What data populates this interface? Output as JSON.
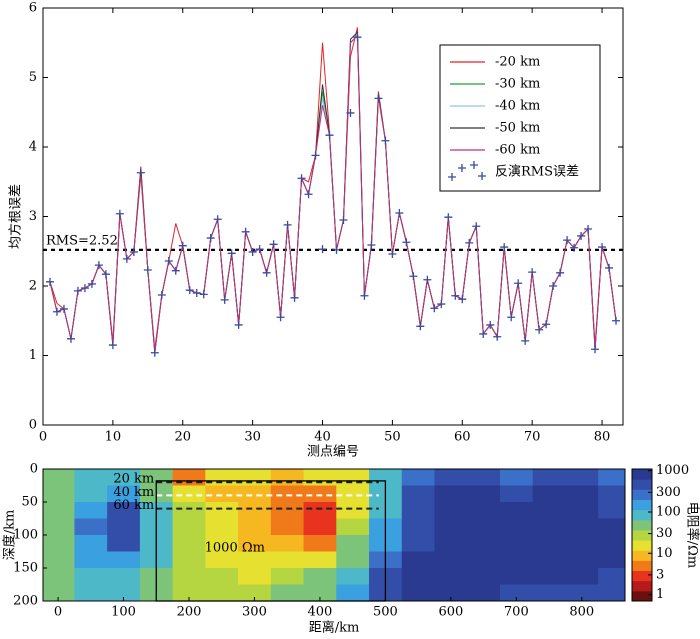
{
  "chart_data": [
    {
      "type": "line",
      "xlabel": "测点编号",
      "ylabel": "均方根误差",
      "xlim": [
        0,
        83
      ],
      "ylim": [
        0,
        6
      ],
      "xticks": [
        0,
        10,
        20,
        30,
        40,
        50,
        60,
        70,
        80
      ],
      "yticks": [
        0,
        1,
        2,
        3,
        4,
        5,
        6
      ],
      "reference_line": {
        "value": 2.52,
        "label": "RMS=2.52"
      },
      "legend": "upper right",
      "x": [
        1,
        2,
        3,
        4,
        5,
        6,
        7,
        8,
        9,
        10,
        11,
        12,
        13,
        14,
        15,
        16,
        17,
        18,
        19,
        20,
        21,
        22,
        23,
        24,
        25,
        26,
        27,
        28,
        29,
        30,
        31,
        32,
        33,
        34,
        35,
        36,
        37,
        38,
        39,
        40,
        41,
        42,
        43,
        44,
        45,
        46,
        47,
        48,
        49,
        50,
        51,
        52,
        53,
        54,
        55,
        56,
        57,
        58,
        59,
        60,
        61,
        62,
        63,
        64,
        65,
        66,
        67,
        68,
        69,
        70,
        71,
        72,
        73,
        74,
        75,
        76,
        77,
        78,
        79,
        80,
        81,
        82
      ],
      "series": [
        {
          "name": "-20 km",
          "color": "#e02424",
          "values": [
            2.06,
            1.75,
            1.67,
            1.24,
            1.93,
            1.97,
            2.03,
            2.3,
            2.17,
            1.2,
            3.04,
            2.39,
            2.49,
            3.72,
            2.23,
            1.1,
            1.87,
            2.36,
            2.9,
            2.58,
            1.94,
            1.9,
            1.88,
            2.69,
            2.96,
            1.8,
            2.47,
            1.44,
            2.78,
            2.49,
            2.53,
            2.19,
            2.6,
            1.55,
            2.88,
            1.83,
            3.55,
            3.5,
            3.88,
            5.5,
            4.2,
            2.52,
            2.95,
            5.3,
            5.72,
            1.86,
            2.59,
            4.8,
            4.09,
            2.46,
            3.05,
            2.63,
            2.14,
            1.42,
            2.09,
            1.68,
            1.74,
            2.99,
            1.86,
            1.81,
            2.62,
            2.86,
            1.31,
            1.44,
            1.27,
            2.56,
            1.55,
            2.04,
            1.21,
            2.2,
            1.37,
            1.45,
            2.0,
            2.19,
            2.66,
            2.55,
            2.72,
            2.82,
            1.15,
            2.56,
            2.26,
            1.5
          ]
        },
        {
          "name": "-30 km",
          "color": "#22a02a",
          "values": [
            2.06,
            1.63,
            1.67,
            1.24,
            1.93,
            1.97,
            2.03,
            2.3,
            2.17,
            1.15,
            3.04,
            2.39,
            2.49,
            3.6,
            2.23,
            1.04,
            1.87,
            2.36,
            2.22,
            2.58,
            1.94,
            1.9,
            1.88,
            2.69,
            2.96,
            1.8,
            2.47,
            1.44,
            2.78,
            2.49,
            2.53,
            2.19,
            2.6,
            1.55,
            2.88,
            1.83,
            3.55,
            3.32,
            3.88,
            4.8,
            4.17,
            2.52,
            2.95,
            5.5,
            5.6,
            1.86,
            2.59,
            4.75,
            4.09,
            2.46,
            3.05,
            2.63,
            2.14,
            1.42,
            2.09,
            1.68,
            1.74,
            2.99,
            1.86,
            1.81,
            2.62,
            2.86,
            1.31,
            1.44,
            1.27,
            2.56,
            1.55,
            2.04,
            1.21,
            2.2,
            1.37,
            1.45,
            2.0,
            2.19,
            2.66,
            2.55,
            2.72,
            2.82,
            1.09,
            2.56,
            2.26,
            1.5
          ]
        },
        {
          "name": "-40 km",
          "color": "#8cc8f0",
          "values": [
            2.06,
            1.63,
            1.67,
            1.24,
            1.93,
            1.97,
            2.03,
            2.3,
            2.17,
            1.15,
            3.04,
            2.39,
            2.49,
            3.65,
            2.23,
            1.04,
            1.87,
            2.36,
            2.22,
            2.58,
            1.94,
            1.9,
            1.88,
            2.69,
            2.96,
            1.8,
            2.47,
            1.44,
            2.78,
            2.49,
            2.53,
            2.19,
            2.6,
            1.55,
            2.88,
            1.83,
            3.55,
            3.32,
            3.88,
            4.7,
            4.17,
            2.52,
            2.95,
            5.5,
            5.62,
            1.86,
            2.59,
            4.7,
            4.09,
            2.46,
            3.05,
            2.63,
            2.14,
            1.42,
            2.09,
            1.68,
            1.74,
            2.99,
            1.86,
            1.81,
            2.62,
            2.86,
            1.31,
            1.44,
            1.27,
            2.56,
            1.55,
            2.04,
            1.21,
            2.2,
            1.37,
            1.45,
            2.0,
            2.19,
            2.66,
            2.55,
            2.72,
            2.82,
            1.09,
            2.56,
            2.26,
            1.5
          ]
        },
        {
          "name": "-50 km",
          "color": "#333333",
          "values": [
            2.06,
            1.63,
            1.67,
            1.24,
            1.93,
            1.97,
            2.03,
            2.3,
            2.17,
            1.15,
            3.04,
            2.39,
            2.49,
            3.68,
            2.23,
            1.04,
            1.87,
            2.36,
            2.22,
            2.58,
            1.94,
            1.9,
            1.88,
            2.69,
            2.96,
            1.8,
            2.47,
            1.44,
            2.78,
            2.49,
            2.53,
            2.19,
            2.6,
            1.55,
            2.88,
            1.83,
            3.55,
            3.32,
            3.88,
            4.9,
            4.17,
            2.52,
            2.95,
            5.55,
            5.65,
            1.86,
            2.59,
            4.75,
            4.09,
            2.46,
            3.05,
            2.63,
            2.14,
            1.42,
            2.09,
            1.68,
            1.74,
            2.99,
            1.86,
            1.81,
            2.62,
            2.86,
            1.31,
            1.44,
            1.27,
            2.56,
            1.55,
            2.04,
            1.21,
            2.2,
            1.37,
            1.45,
            2.0,
            2.19,
            2.66,
            2.55,
            2.72,
            2.82,
            1.09,
            2.56,
            2.26,
            1.5
          ]
        },
        {
          "name": "-60 km",
          "color": "#c0307a",
          "values": [
            2.06,
            1.63,
            1.67,
            1.24,
            1.93,
            1.97,
            2.03,
            2.3,
            2.17,
            1.15,
            3.04,
            2.39,
            2.49,
            3.62,
            2.23,
            1.04,
            1.87,
            2.36,
            2.22,
            2.58,
            1.94,
            1.9,
            1.88,
            2.69,
            2.96,
            1.8,
            2.47,
            1.44,
            2.78,
            2.49,
            2.53,
            2.19,
            2.6,
            1.55,
            2.88,
            1.83,
            3.55,
            3.32,
            3.88,
            4.6,
            4.17,
            2.52,
            2.95,
            5.5,
            5.6,
            1.86,
            2.59,
            4.72,
            4.09,
            2.46,
            3.05,
            2.63,
            2.14,
            1.42,
            2.09,
            1.68,
            1.74,
            2.99,
            1.86,
            1.81,
            2.62,
            2.86,
            1.31,
            1.44,
            1.27,
            2.56,
            1.55,
            2.04,
            1.21,
            2.2,
            1.37,
            1.45,
            2.0,
            2.19,
            2.66,
            2.55,
            2.72,
            2.82,
            1.09,
            2.56,
            2.26,
            1.5
          ]
        },
        {
          "name": "反演RMS误差",
          "type": "scatter",
          "marker": "+",
          "color": "#3a4aa0",
          "values": [
            2.06,
            1.63,
            1.67,
            1.24,
            1.93,
            1.97,
            2.03,
            2.3,
            2.17,
            1.15,
            3.04,
            2.39,
            2.49,
            3.63,
            2.23,
            1.04,
            1.87,
            2.36,
            2.22,
            2.58,
            1.94,
            1.9,
            1.88,
            2.69,
            2.96,
            1.8,
            2.47,
            1.44,
            2.78,
            2.49,
            2.53,
            2.19,
            2.6,
            1.55,
            2.88,
            1.83,
            3.55,
            3.32,
            3.88,
            2.53,
            4.17,
            2.52,
            2.95,
            4.49,
            5.58,
            1.86,
            2.59,
            4.7,
            4.09,
            2.46,
            3.05,
            2.63,
            2.14,
            1.42,
            2.09,
            1.68,
            1.74,
            2.99,
            1.86,
            1.81,
            2.62,
            2.86,
            1.31,
            1.44,
            1.27,
            2.56,
            1.55,
            2.04,
            1.21,
            2.2,
            1.37,
            1.45,
            2.0,
            2.19,
            2.66,
            2.55,
            2.72,
            2.82,
            1.09,
            2.56,
            2.26,
            1.5
          ]
        }
      ]
    },
    {
      "type": "heatmap",
      "xlabel": "距离/km",
      "ylabel": "深度/km",
      "colorbar_label": "电阻率/Ωm",
      "xlim": [
        -23,
        866
      ],
      "ylim": [
        200,
        0
      ],
      "xticks": [
        0,
        100,
        200,
        300,
        400,
        500,
        600,
        700,
        800
      ],
      "yticks": [
        0,
        50,
        100,
        150,
        200
      ],
      "x_edges": [
        -25,
        25,
        75,
        125,
        175,
        225,
        275,
        325,
        375,
        425,
        475,
        525,
        575,
        625,
        675,
        725,
        775,
        825,
        875
      ],
      "depth_edges": [
        0,
        25,
        50,
        75,
        100,
        125,
        150,
        175,
        200
      ],
      "z": [
        [
          60,
          80,
          100,
          60,
          5,
          15,
          20,
          8,
          15,
          20,
          100,
          300,
          500,
          400,
          300,
          500,
          400,
          300
        ],
        [
          40,
          100,
          200,
          50,
          20,
          10,
          8,
          5,
          5,
          15,
          80,
          400,
          800,
          800,
          600,
          800,
          700,
          500
        ],
        [
          40,
          200,
          500,
          80,
          25,
          12,
          8,
          4,
          3,
          20,
          100,
          500,
          1000,
          1000,
          800,
          1000,
          900,
          600
        ],
        [
          50,
          250,
          600,
          100,
          30,
          15,
          8,
          5,
          3,
          30,
          150,
          600,
          1000,
          1000,
          1000,
          1000,
          1000,
          700
        ],
        [
          50,
          200,
          500,
          100,
          30,
          18,
          10,
          8,
          6,
          40,
          200,
          600,
          1000,
          1000,
          1000,
          1000,
          1000,
          700
        ],
        [
          60,
          150,
          200,
          80,
          30,
          20,
          15,
          12,
          20,
          60,
          300,
          700,
          900,
          1000,
          1000,
          1000,
          900,
          700
        ],
        [
          60,
          100,
          100,
          50,
          30,
          25,
          20,
          25,
          40,
          100,
          400,
          700,
          800,
          900,
          800,
          800,
          700,
          600
        ],
        [
          60,
          80,
          80,
          40,
          30,
          30,
          30,
          40,
          60,
          150,
          500,
          700,
          700,
          700,
          600,
          600,
          500,
          500
        ]
      ],
      "log_color": true,
      "clim": [
        0.7,
        1100
      ],
      "cticks": [
        1,
        3,
        10,
        30,
        100,
        300,
        1000
      ],
      "colormap": [
        "#6b1010",
        "#b51a1a",
        "#e8331f",
        "#f07a1a",
        "#f5b820",
        "#e6e030",
        "#b5d640",
        "#7cc47a",
        "#4cb8c8",
        "#3aa0e0",
        "#3a70c8",
        "#334ea8",
        "#2a3a90"
      ],
      "depth_lines": [
        20,
        40,
        60
      ],
      "depth_line_colors": [
        "#222222",
        "#ffffff",
        "#222222"
      ],
      "depth_line_labels": [
        "20 km",
        "40 km",
        "60 km"
      ],
      "depth_line_range": [
        150,
        490
      ],
      "box": {
        "x": [
          150,
          500
        ],
        "depth": [
          18,
          200
        ]
      },
      "annotation": {
        "text": "1000 Ωm",
        "x": 270,
        "depth": 120
      }
    }
  ]
}
